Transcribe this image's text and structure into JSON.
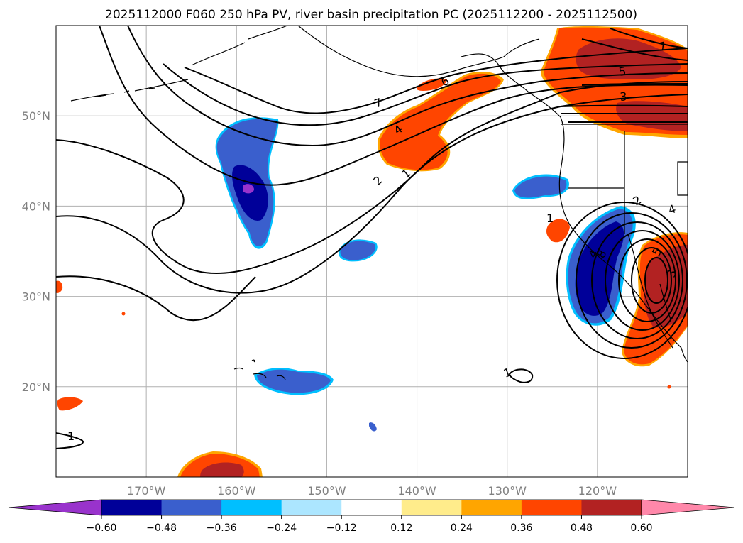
{
  "chart_data": {
    "type": "contour",
    "title": "2025112000 F060 250 hPa PV, river basin precipitation PC (2025112200 - 2025112500)",
    "map": {
      "projection": "lat-lon",
      "lon_range": [
        -180,
        -110
      ],
      "lat_range": [
        10,
        60
      ],
      "lon_ticks": [
        -170,
        -160,
        -150,
        -140,
        -130,
        -120
      ],
      "lon_tick_labels": [
        "170°W",
        "160°W",
        "150°W",
        "140°W",
        "130°W",
        "120°W"
      ],
      "lat_ticks": [
        20,
        30,
        40,
        50
      ],
      "lat_tick_labels": [
        "20°N",
        "30°N",
        "40°N",
        "50°N"
      ],
      "grid": true
    },
    "colorbar": {
      "boundaries": [
        -0.6,
        -0.48,
        -0.36,
        -0.24,
        -0.12,
        0.12,
        0.24,
        0.36,
        0.48,
        0.6
      ],
      "tick_labels": [
        "−0.60",
        "−0.48",
        "−0.36",
        "−0.24",
        "−0.12",
        "0.12",
        "0.24",
        "0.36",
        "0.48",
        "0.60"
      ],
      "colors": [
        "#9933cc",
        "#000099",
        "#3a5fcd",
        "#00bfff",
        "#ace6ff",
        "#ffffff",
        "#ffec8b",
        "#ffa500",
        "#ff4500",
        "#b22222",
        "#ff88aa"
      ],
      "extend": "both"
    },
    "pv_contour_labels": [
      "1",
      "2",
      "4",
      "6",
      "7",
      "7",
      "5",
      "3",
      "2",
      "4",
      "5",
      "3",
      "4",
      "8",
      "1",
      "1",
      "1"
    ]
  },
  "colors": {
    "grid": "#b0b0b0",
    "contour": "#000000",
    "land": "#000000"
  }
}
